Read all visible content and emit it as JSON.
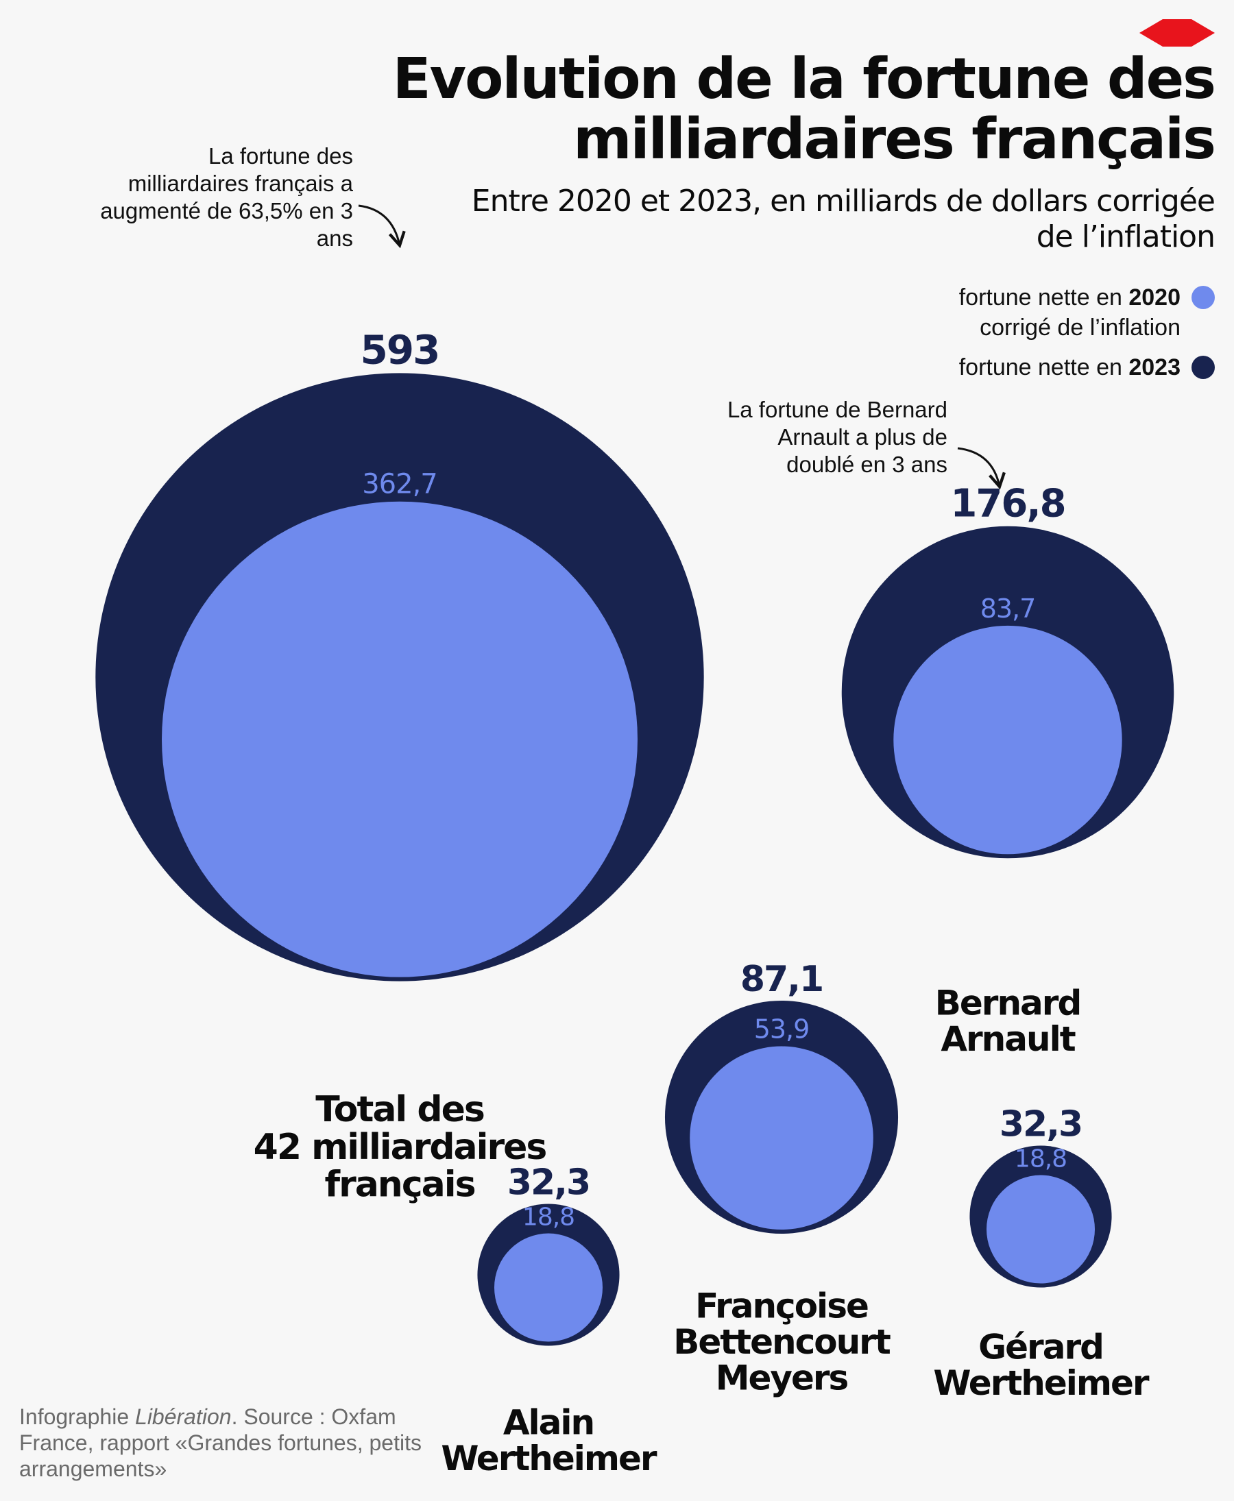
{
  "title": "Evolution de la fortune des milliardaires français",
  "subtitle": "Entre 2020 et 2023, en milliards de dollars corrigée de l’inflation",
  "legend": {
    "y2020_prefix": "fortune nette en ",
    "y2020_year": "2020",
    "y2020_suffix": "corrigé de l’inflation",
    "y2023_prefix": "fortune nette en ",
    "y2023_year": "2023"
  },
  "annotations": {
    "total": "La fortune des milliardaires français a augmenté de 63,5% en 3 ans",
    "arnault": "La fortune de Bernard Arnault a plus de doublé en 3 ans"
  },
  "source": {
    "prefix": "Infographie ",
    "publication": "Libération",
    "rest": ". Source : Oxfam France, rapport «Grandes fortunes, petits arrangements»"
  },
  "colors": {
    "fortune_2020": "#6f8aed",
    "fortune_2023": "#18234f",
    "brand": "#e8141c"
  },
  "chart_data": {
    "type": "nested-bubble",
    "series": [
      {
        "name": "fortune nette en 2020 corrigé de l’inflation",
        "color": "#6f8aed"
      },
      {
        "name": "fortune nette en 2023",
        "color": "#18234f"
      }
    ],
    "items": [
      {
        "name": "Total des 42 milliardaires français",
        "label_lines": [
          "Total des",
          "42 milliardaires",
          "français"
        ],
        "value_2020": 362.7,
        "label_2020": "362,7",
        "value_2023": 593,
        "label_2023": "593"
      },
      {
        "name": "Bernard Arnault",
        "label_lines": [
          "Bernard",
          "Arnault"
        ],
        "value_2020": 83.7,
        "label_2020": "83,7",
        "value_2023": 176.8,
        "label_2023": "176,8"
      },
      {
        "name": "Françoise Bettencourt Meyers",
        "label_lines": [
          "Françoise",
          "Bettencourt",
          "Meyers"
        ],
        "value_2020": 53.9,
        "label_2020": "53,9",
        "value_2023": 87.1,
        "label_2023": "87,1"
      },
      {
        "name": "Gérard Wertheimer",
        "label_lines": [
          "Gérard",
          "Wertheimer"
        ],
        "value_2020": 18.8,
        "label_2020": "18,8",
        "value_2023": 32.3,
        "label_2023": "32,3"
      },
      {
        "name": "Alain Wertheimer",
        "label_lines": [
          "Alain",
          "Wertheimer"
        ],
        "value_2020": 18.8,
        "label_2020": "18,8",
        "value_2023": 32.3,
        "label_2023": "32,3"
      }
    ]
  }
}
